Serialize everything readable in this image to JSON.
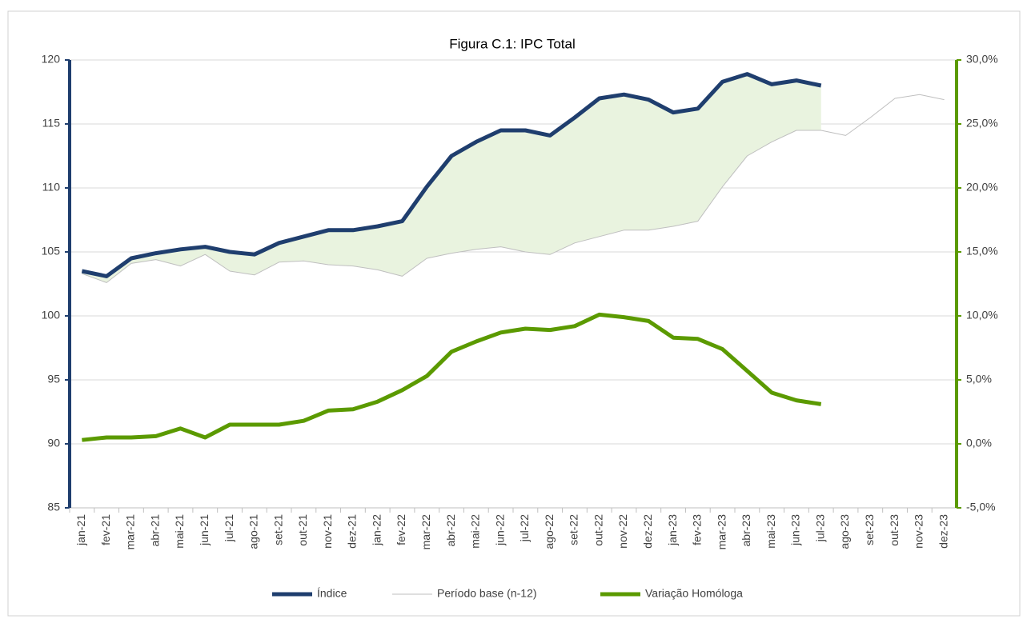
{
  "chart_data": {
    "type": "line",
    "title": "Figura C.1: IPC Total",
    "categories": [
      "jan-21",
      "fev-21",
      "mar-21",
      "abr-21",
      "mai-21",
      "jun-21",
      "jul-21",
      "ago-21",
      "set-21",
      "out-21",
      "nov-21",
      "dez-21",
      "jan-22",
      "fev-22",
      "mar-22",
      "abr-22",
      "mai-22",
      "jun-22",
      "jul-22",
      "ago-22",
      "set-22",
      "out-22",
      "nov-22",
      "dez-22",
      "jan-23",
      "fev-23",
      "mar-23",
      "abr-23",
      "mai-23",
      "jun-23",
      "jul-23",
      "ago-23",
      "set-23",
      "out-23",
      "nov-23",
      "dez-23"
    ],
    "series": [
      {
        "name": "Índice",
        "color": "#1f3e6e",
        "axis": "y",
        "values": [
          103.5,
          103.1,
          104.5,
          104.9,
          105.2,
          105.4,
          105.0,
          104.8,
          105.7,
          106.2,
          106.7,
          106.7,
          107.0,
          107.4,
          110.1,
          112.5,
          113.6,
          114.5,
          114.5,
          114.1,
          115.5,
          117.0,
          117.3,
          116.9,
          115.9,
          116.2,
          118.3,
          118.9,
          118.1,
          118.4,
          118.0,
          null,
          null,
          null,
          null,
          null
        ]
      },
      {
        "name": "Período base (n-12)",
        "color": "#bfbfbf",
        "axis": "y",
        "values": [
          103.3,
          102.6,
          104.1,
          104.4,
          103.9,
          104.8,
          103.5,
          103.2,
          104.2,
          104.3,
          104.0,
          103.9,
          103.6,
          103.1,
          104.5,
          104.9,
          105.2,
          105.4,
          105.0,
          104.8,
          105.7,
          106.2,
          106.7,
          106.7,
          107.0,
          107.4,
          110.1,
          112.5,
          113.6,
          114.5,
          114.5,
          114.1,
          115.5,
          117.0,
          117.3,
          116.9
        ]
      },
      {
        "name": "Variação Homóloga",
        "color": "#5b9a00",
        "axis": "y2",
        "values": [
          0.3,
          0.5,
          0.5,
          0.6,
          1.2,
          0.5,
          1.5,
          1.5,
          1.5,
          1.8,
          2.6,
          2.7,
          3.3,
          4.2,
          5.3,
          7.2,
          8.0,
          8.7,
          9.0,
          8.9,
          9.2,
          10.1,
          9.9,
          9.6,
          8.3,
          8.2,
          7.4,
          5.7,
          4.0,
          3.4,
          3.1,
          null,
          null,
          null,
          null,
          null
        ]
      }
    ],
    "fill_color": "#e9f3df",
    "ylim": [
      85,
      120
    ],
    "yticks": [
      85,
      90,
      95,
      100,
      105,
      110,
      115,
      120
    ],
    "y2lim": [
      -5,
      30
    ],
    "y2ticks": [
      {
        "value": -5,
        "label": "-5,0%"
      },
      {
        "value": 0,
        "label": "0,0%"
      },
      {
        "value": 5,
        "label": "5,0%"
      },
      {
        "value": 10,
        "label": "10,0%"
      },
      {
        "value": 15,
        "label": "15,0%"
      },
      {
        "value": 20,
        "label": "20,0%"
      },
      {
        "value": 25,
        "label": "25,0%"
      },
      {
        "value": 30,
        "label": "30,0%"
      }
    ],
    "grid": true,
    "legend": "bottom"
  }
}
